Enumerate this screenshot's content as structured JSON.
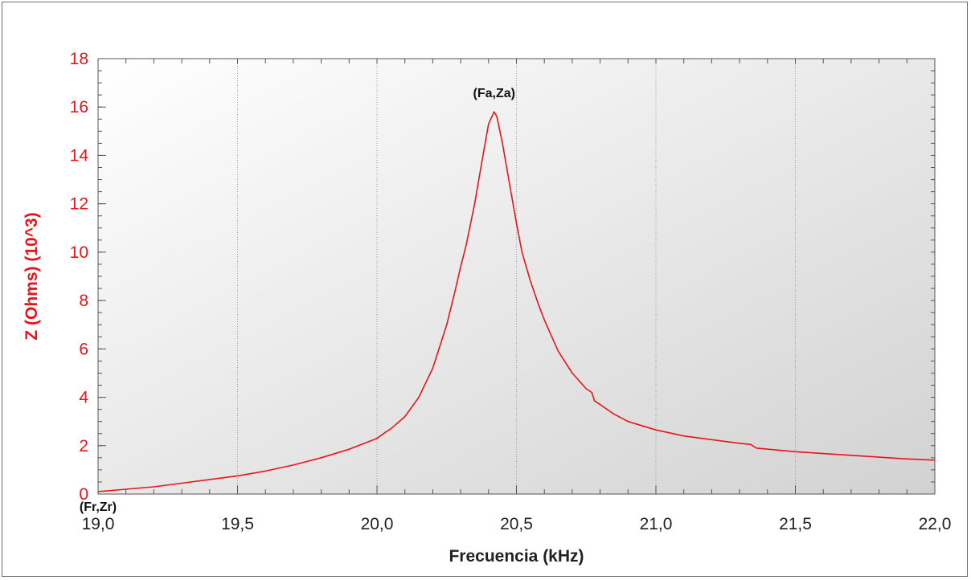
{
  "chart_data": {
    "type": "line",
    "title": "",
    "xlabel": "Frecuencia (kHz)",
    "ylabel": "Z (Ohms) (10^3)",
    "xlim": [
      19.0,
      22.0
    ],
    "ylim": [
      0,
      18
    ],
    "x_ticks": [
      19.0,
      19.5,
      20.0,
      20.5,
      21.0,
      21.5,
      22.0
    ],
    "x_tick_labels": [
      "19,0",
      "19,5",
      "20,0",
      "20,5",
      "21,0",
      "21,5",
      "22,0"
    ],
    "y_ticks": [
      0,
      2,
      4,
      6,
      8,
      10,
      12,
      14,
      16,
      18
    ],
    "y_tick_labels": [
      "0",
      "2",
      "4",
      "6",
      "8",
      "10",
      "12",
      "14",
      "16",
      "18"
    ],
    "grid": {
      "vertical": true,
      "horizontal": false
    },
    "colors": {
      "line": "#e8141a",
      "ylabel": "#e8141a",
      "ytick": "#e8141a",
      "grid": "#9a9a9a",
      "axis": "#555555"
    },
    "annotations": [
      {
        "text": "(Fa,Za)",
        "x": 20.42,
        "y": 16.4
      },
      {
        "text": "(Fr,Zr)",
        "x": 19.0,
        "y": -0.7
      }
    ],
    "series": [
      {
        "x": [
          19.0,
          19.1,
          19.2,
          19.3,
          19.4,
          19.5,
          19.6,
          19.7,
          19.8,
          19.9,
          20.0,
          20.03,
          20.05,
          20.1,
          20.15,
          20.2,
          20.25,
          20.28,
          20.3,
          20.32,
          20.35,
          20.38,
          20.4,
          20.42,
          20.43,
          20.45,
          20.48,
          20.5,
          20.52,
          20.55,
          20.58,
          20.6,
          20.65,
          20.7,
          20.75,
          20.77,
          20.78,
          20.8,
          20.85,
          20.9,
          21.0,
          21.1,
          21.2,
          21.3,
          21.34,
          21.36,
          21.5,
          21.7,
          21.9,
          22.0
        ],
        "y": [
          0.1,
          0.2,
          0.3,
          0.45,
          0.6,
          0.75,
          0.95,
          1.2,
          1.5,
          1.85,
          2.3,
          2.55,
          2.7,
          3.2,
          4.0,
          5.2,
          7.0,
          8.4,
          9.4,
          10.3,
          12.0,
          14.0,
          15.3,
          15.8,
          15.6,
          14.5,
          12.5,
          11.2,
          10.0,
          8.8,
          7.8,
          7.2,
          5.9,
          5.0,
          4.35,
          4.2,
          3.85,
          3.7,
          3.3,
          3.0,
          2.65,
          2.4,
          2.25,
          2.1,
          2.05,
          1.9,
          1.75,
          1.6,
          1.45,
          1.4
        ]
      }
    ]
  }
}
